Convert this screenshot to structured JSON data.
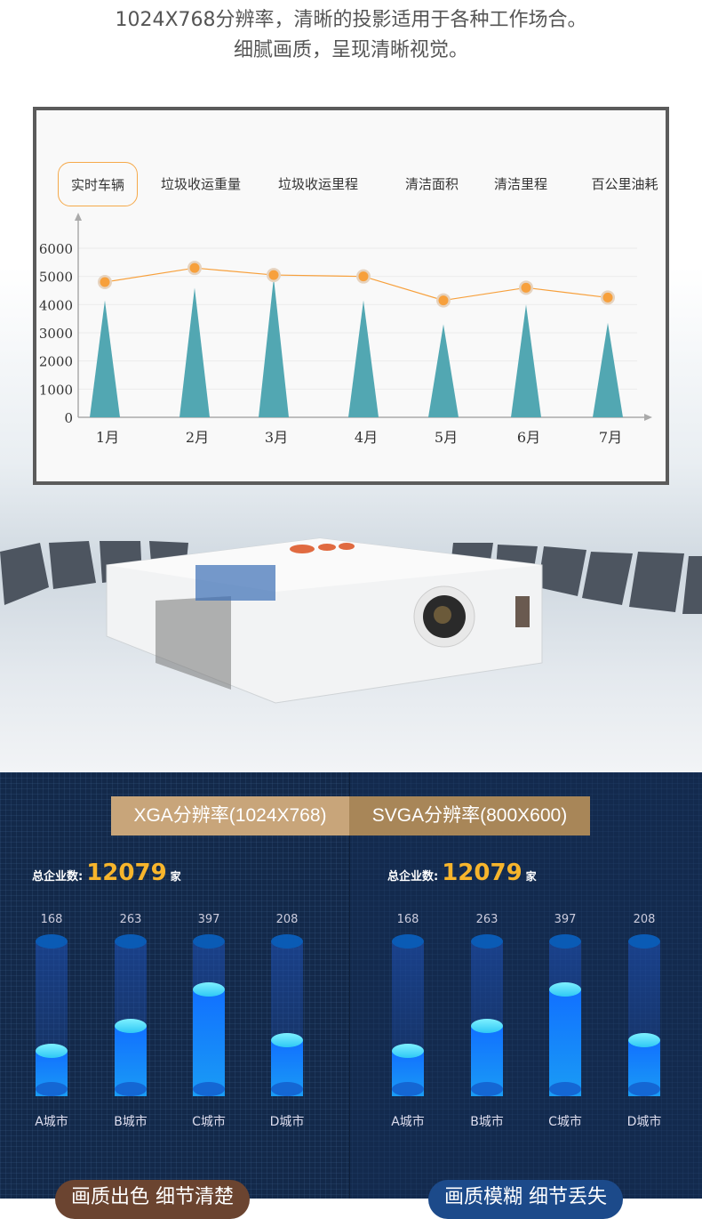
{
  "headline": {
    "line1": "1024X768分辨率，清晰的投影适用于各种工作场合。",
    "line2": "细腻画质，呈现清晰视觉。"
  },
  "tabs": [
    "实时车辆",
    "垃圾收运重量",
    "垃圾收运里程",
    "清洁面积",
    "清洁里程",
    "百公里油耗"
  ],
  "active_tab": 0,
  "chart_data": {
    "type": "bar",
    "categories": [
      "1月",
      "2月",
      "3月",
      "4月",
      "5月",
      "6月",
      "7月"
    ],
    "yticks": [
      "0",
      "1000",
      "2000",
      "3000",
      "4000",
      "5000",
      "6000"
    ],
    "ylim": [
      0,
      6000
    ],
    "grid": true,
    "series": [
      {
        "kind": "triangle-bar",
        "color": "#52a7b2",
        "values": [
          4150,
          4600,
          4950,
          4150,
          3300,
          4000,
          3350
        ]
      },
      {
        "kind": "line",
        "color": "#f7a03c",
        "values": [
          4800,
          5300,
          5050,
          5000,
          4150,
          4600,
          4250
        ]
      }
    ]
  },
  "comparison": {
    "panels": [
      {
        "title": "XGA分辨率(1024X768)",
        "total_label": "总企业数:",
        "total": "12079",
        "unit": "家",
        "footer": "画质出色  细节清楚",
        "footer_color": "#6b4430",
        "title_color": "#c8a57a",
        "bars": [
          {
            "city": "A城市",
            "value": 168
          },
          {
            "city": "B城市",
            "value": 263
          },
          {
            "city": "C城市",
            "value": 397
          },
          {
            "city": "D城市",
            "value": 208
          }
        ]
      },
      {
        "title": "SVGA分辨率(800X600)",
        "total_label": "总企业数:",
        "total": "12079",
        "unit": "家",
        "footer": "画质模糊  细节丢失",
        "footer_color": "#1c4a8a",
        "title_color": "#a88658",
        "bars": [
          {
            "city": "A城市",
            "value": 168
          },
          {
            "city": "B城市",
            "value": 263
          },
          {
            "city": "C城市",
            "value": 397
          },
          {
            "city": "D城市",
            "value": 208
          }
        ]
      }
    ]
  }
}
